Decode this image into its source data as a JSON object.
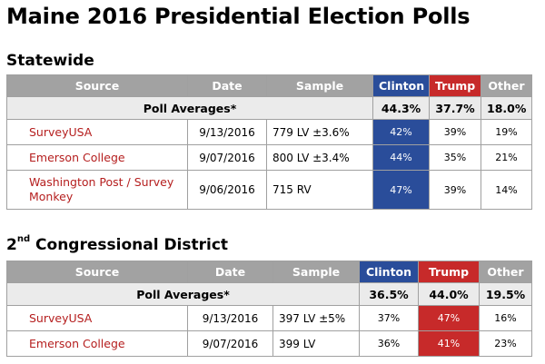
{
  "page": {
    "title": "Maine 2016 Presidential Election Polls"
  },
  "statewide": {
    "heading": "Statewide",
    "columns": [
      "Source",
      "Date",
      "Sample",
      "Clinton",
      "Trump",
      "Other"
    ],
    "averages": {
      "label": "Poll Averages*",
      "clinton": "44.3%",
      "trump": "37.7%",
      "other": "18.0%"
    },
    "rows": [
      {
        "source": "SurveyUSA",
        "date": "9/13/2016",
        "sample": "779 LV ±3.6%",
        "clinton": "42%",
        "trump": "39%",
        "other": "19%"
      },
      {
        "source": "Emerson College",
        "date": "9/07/2016",
        "sample": "800 LV ±3.4%",
        "clinton": "44%",
        "trump": "35%",
        "other": "21%"
      },
      {
        "source": "Washington Post / Survey Monkey",
        "date": "9/06/2016",
        "sample": "715 RV",
        "clinton": "47%",
        "trump": "39%",
        "other": "14%"
      }
    ]
  },
  "district2": {
    "heading_prefix": "2",
    "heading_sup": "nd",
    "heading_suffix": " Congressional District",
    "columns": [
      "Source",
      "Date",
      "Sample",
      "Clinton",
      "Trump",
      "Other"
    ],
    "averages": {
      "label": "Poll Averages*",
      "clinton": "36.5%",
      "trump": "44.0%",
      "other": "19.5%"
    },
    "rows": [
      {
        "source": "SurveyUSA",
        "date": "9/13/2016",
        "sample": "397 LV ±5%",
        "clinton": "37%",
        "trump": "47%",
        "other": "16%"
      },
      {
        "source": "Emerson College",
        "date": "9/07/2016",
        "sample": "399 LV",
        "clinton": "36%",
        "trump": "41%",
        "other": "23%"
      }
    ]
  },
  "colors": {
    "clinton": "#2a4d9a",
    "trump": "#c72a2a",
    "header_gray": "#a2a2a2",
    "source_link": "#b51e1e"
  }
}
